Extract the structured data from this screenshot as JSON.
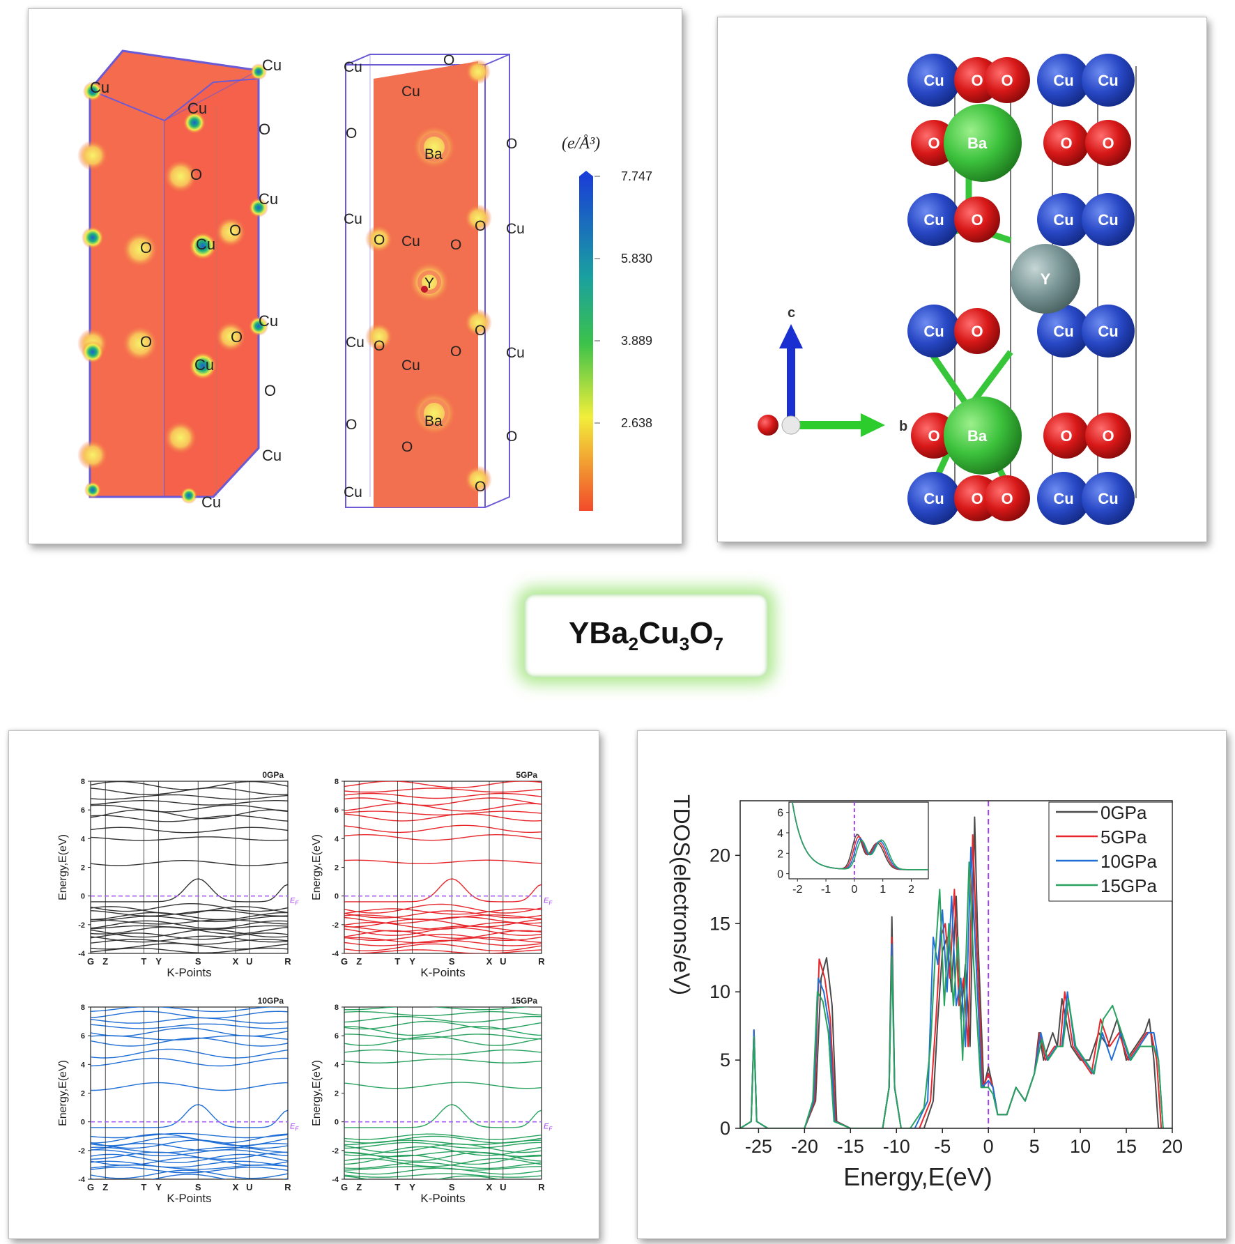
{
  "compound": {
    "base": [
      "YBa",
      "Cu",
      "O"
    ],
    "subs": [
      "2",
      "3",
      "7"
    ]
  },
  "density_panel": {
    "atom_labels_block": [
      "Cu",
      "Cu",
      "Cu",
      "O",
      "O",
      "Cu",
      "O",
      "Cu",
      "O",
      "Cu",
      "O",
      "Cu",
      "O",
      "O",
      "Cu",
      "Cu"
    ],
    "atom_labels_plane": [
      "Cu",
      "O",
      "Cu",
      "O",
      "Ba",
      "O",
      "Cu",
      "O",
      "O",
      "Cu",
      "O",
      "Y",
      "Cu",
      "O",
      "O",
      "Cu",
      "Cu",
      "O",
      "O",
      "Ba",
      "O",
      "Cu",
      "O",
      "Cu",
      "O"
    ],
    "colorbar_unit": "(e/Å³)",
    "colorbar_ticks": [
      "7.747",
      "5.830",
      "3.889",
      "2.638"
    ]
  },
  "crystal_panel": {
    "axis_labels": [
      "c",
      "b"
    ],
    "atoms": {
      "Cu": "Cu",
      "O": "O",
      "Ba": "Ba",
      "Y": "Y"
    }
  },
  "band_panel": {
    "ylabel": "Energy,E(eV)",
    "xlabel": "K-Points",
    "kpoints": [
      "G",
      "Z",
      "T",
      "Y",
      "S",
      "X",
      "U",
      "R"
    ],
    "yticks": [
      "8",
      "6",
      "4",
      "2",
      "0",
      "-2",
      "-4"
    ],
    "fermi_label": "E",
    "fermi_sub": "F",
    "panels": [
      {
        "pressure": "0GPa",
        "color": "#333333"
      },
      {
        "pressure": "5GPa",
        "color": "#e8272c"
      },
      {
        "pressure": "10GPa",
        "color": "#1f6fd6"
      },
      {
        "pressure": "15GPa",
        "color": "#27a35f"
      }
    ]
  },
  "chart_data": {
    "type": "line",
    "xlabel": "Energy,E(eV)",
    "ylabel": "TDOS(electrons/eV)",
    "xlim": [
      -27,
      20
    ],
    "ylim": [
      0,
      24
    ],
    "xticks": [
      "-25",
      "-20",
      "-15",
      "-10",
      "-5",
      "0",
      "5",
      "10",
      "15",
      "20"
    ],
    "yticks": [
      "0",
      "5",
      "10",
      "15",
      "20"
    ],
    "legend_position": "top-right",
    "series": [
      {
        "name": "0GPa",
        "color": "#4a4a4a",
        "x": [
          -27,
          -25.8,
          -25.5,
          -25.2,
          -24,
          -20,
          -18.8,
          -18.2,
          -17.6,
          -17,
          -16.5,
          -15,
          -11.5,
          -10.8,
          -10.5,
          -10.2,
          -9.5,
          -7,
          -6,
          -5.5,
          -5,
          -4.5,
          -4,
          -3.5,
          -3,
          -2.5,
          -2,
          -1.5,
          -1.2,
          -0.5,
          0,
          0.5,
          1,
          2,
          3,
          4,
          5,
          5.5,
          6,
          7,
          7.5,
          8,
          9,
          10,
          11,
          12,
          13,
          14,
          15,
          16,
          17,
          17.5,
          18,
          18.5,
          20
        ],
        "y": [
          0,
          0.5,
          7.2,
          0.5,
          0,
          0,
          2,
          11,
          12.5,
          9,
          0.5,
          0,
          0,
          3,
          15.5,
          3,
          0,
          0,
          2,
          8,
          13,
          14,
          10,
          17,
          8,
          12,
          6,
          22.8,
          15,
          3,
          4.5,
          3,
          1,
          1,
          3,
          2,
          4,
          7,
          5,
          7,
          6,
          9.5,
          6,
          5,
          5,
          7,
          6,
          8,
          5,
          6,
          7,
          8,
          5,
          0,
          0
        ]
      },
      {
        "name": "5GPa",
        "color": "#e8272c",
        "x": [
          -27,
          -25.8,
          -25.5,
          -25.2,
          -24,
          -20,
          -18.9,
          -18.4,
          -17.8,
          -17.2,
          -16.6,
          -15,
          -11.5,
          -10.8,
          -10.5,
          -10.2,
          -9.5,
          -7.5,
          -6.3,
          -5.7,
          -5.2,
          -4.7,
          -4.2,
          -3.7,
          -3.2,
          -2.7,
          -2.2,
          -1.7,
          -1.3,
          -0.6,
          0,
          0.5,
          1,
          2,
          3,
          4,
          5,
          5.6,
          6.2,
          7.2,
          7.8,
          8.3,
          9.2,
          10.2,
          11.2,
          12.2,
          13.2,
          14.2,
          15.2,
          16.2,
          17.2,
          17.7,
          18.3,
          18.8,
          20
        ],
        "y": [
          0,
          0.5,
          7.2,
          0.5,
          0,
          0,
          2,
          12.4,
          11,
          8,
          0.5,
          0,
          0,
          3,
          14,
          3,
          0,
          0,
          2,
          8,
          14,
          15,
          11,
          17.5,
          9,
          11,
          6,
          21.5,
          14,
          3,
          4,
          3,
          1,
          1,
          3,
          2,
          4,
          7,
          5,
          6,
          6,
          10,
          6,
          5,
          4,
          8,
          6,
          7,
          5,
          6,
          7,
          7,
          5,
          0,
          0
        ]
      },
      {
        "name": "10GPa",
        "color": "#1f6fd6",
        "x": [
          -27,
          -25.8,
          -25.5,
          -25.2,
          -24,
          -20,
          -19,
          -18.5,
          -17.9,
          -17.3,
          -16.7,
          -15,
          -11.5,
          -10.8,
          -10.5,
          -10.2,
          -9.5,
          -8,
          -6.6,
          -6,
          -5.5,
          -5,
          -4.5,
          -4,
          -3.5,
          -3,
          -2.5,
          -1.9,
          -1.4,
          -0.7,
          0,
          0.5,
          1,
          2,
          3,
          4,
          5,
          5.7,
          6.4,
          7.4,
          8,
          8.6,
          9.4,
          10.4,
          11.4,
          12.4,
          13.4,
          14.4,
          15.4,
          16.4,
          17.4,
          18,
          18.5,
          19,
          20
        ],
        "y": [
          0,
          0.5,
          7.2,
          0.5,
          0,
          0,
          2,
          11,
          10,
          7.5,
          0.5,
          0,
          0,
          3,
          13.5,
          3,
          0,
          0,
          2,
          14,
          12,
          16,
          10,
          17,
          9,
          11,
          6,
          20.6,
          13,
          3,
          3.5,
          3,
          1,
          1,
          3,
          2,
          4,
          7,
          5,
          6,
          6,
          10,
          6,
          5,
          4,
          7,
          5,
          7,
          5,
          6,
          7,
          7,
          5,
          0,
          0
        ]
      },
      {
        "name": "15GPa",
        "color": "#27a35f",
        "x": [
          -27,
          -25.8,
          -25.5,
          -25.2,
          -24,
          -20,
          -19.1,
          -18.6,
          -18,
          -17.4,
          -16.8,
          -15,
          -11.5,
          -10.8,
          -10.5,
          -10.2,
          -9.5,
          -8.5,
          -7,
          -6.3,
          -5.8,
          -5.3,
          -4.8,
          -4.3,
          -3.8,
          -3.3,
          -2.8,
          -2.1,
          -1.6,
          -0.8,
          0,
          0.5,
          1,
          2,
          3,
          4,
          5,
          5.8,
          6.5,
          7.5,
          8.1,
          8.7,
          9.5,
          10.5,
          11.5,
          12.5,
          13.5,
          14.5,
          15.5,
          16.5,
          17.5,
          18,
          18.5,
          19,
          20
        ],
        "y": [
          0,
          0.5,
          6.7,
          0.5,
          0,
          0,
          2,
          10,
          9.3,
          7,
          0.5,
          0,
          0,
          3,
          12.6,
          3,
          0,
          0,
          1.5,
          6,
          12.5,
          17.5,
          9,
          15,
          9,
          14,
          5,
          19.5,
          12,
          3,
          3,
          2.5,
          1,
          1,
          3,
          2,
          4,
          6.5,
          5,
          6,
          6,
          9.5,
          6,
          5,
          4,
          8,
          9,
          7,
          5,
          6,
          6,
          6,
          5,
          0,
          0
        ]
      }
    ],
    "inset": {
      "xlim": [
        -2.3,
        2.6
      ],
      "ylim": [
        -0.5,
        7
      ],
      "xticks": [
        "-2",
        "-1",
        "0",
        "1",
        "2"
      ],
      "yticks": [
        "0",
        "2",
        "4",
        "6"
      ]
    }
  }
}
